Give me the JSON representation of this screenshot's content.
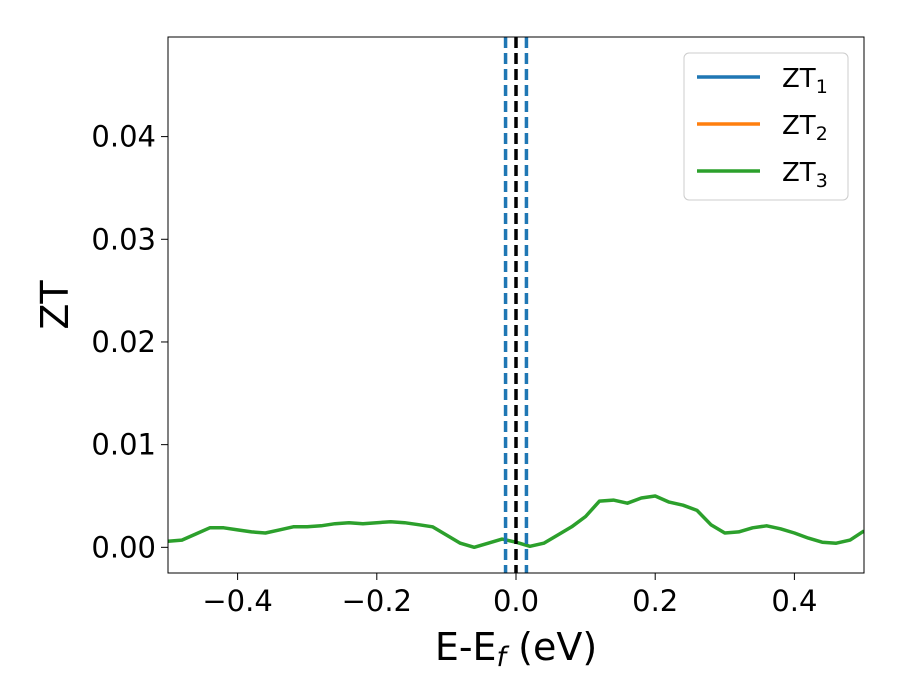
{
  "chart_data": {
    "type": "line",
    "xlabel": "E-E",
    "xlabel_sub": "f",
    "xlabel_unit": " (eV)",
    "ylabel": "ZT",
    "xlim": [
      -0.5,
      0.5
    ],
    "ylim": [
      -0.0025,
      0.0497
    ],
    "grid": false,
    "legend_position": "top-right",
    "x_ticks": [
      -0.4,
      -0.2,
      0.0,
      0.2,
      0.4
    ],
    "x_tick_labels": [
      "−0.4",
      "−0.2",
      "0.0",
      "0.2",
      "0.4"
    ],
    "y_ticks": [
      0.0,
      0.01,
      0.02,
      0.03,
      0.04
    ],
    "y_tick_labels": [
      "0.00",
      "0.01",
      "0.02",
      "0.03",
      "0.04"
    ],
    "series": [
      {
        "name": "ZT",
        "subscript": "1",
        "color": "#1f77b4",
        "x": [],
        "y": []
      },
      {
        "name": "ZT",
        "subscript": "2",
        "color": "#ff7f0e",
        "x": [],
        "y": []
      },
      {
        "name": "ZT",
        "subscript": "3",
        "color": "#2ca02c",
        "x": [
          -0.5,
          -0.48,
          -0.46,
          -0.44,
          -0.42,
          -0.4,
          -0.38,
          -0.36,
          -0.34,
          -0.32,
          -0.3,
          -0.28,
          -0.26,
          -0.24,
          -0.22,
          -0.2,
          -0.18,
          -0.16,
          -0.14,
          -0.12,
          -0.1,
          -0.08,
          -0.06,
          -0.04,
          -0.02,
          0.0,
          0.02,
          0.04,
          0.06,
          0.08,
          0.1,
          0.12,
          0.14,
          0.16,
          0.18,
          0.2,
          0.22,
          0.24,
          0.26,
          0.28,
          0.3,
          0.32,
          0.34,
          0.36,
          0.38,
          0.4,
          0.42,
          0.44,
          0.46,
          0.48,
          0.5
        ],
        "y": [
          0.0006,
          0.0007,
          0.0013,
          0.0019,
          0.0019,
          0.0017,
          0.0015,
          0.0014,
          0.0017,
          0.002,
          0.002,
          0.0021,
          0.0023,
          0.0024,
          0.0023,
          0.0024,
          0.0025,
          0.0024,
          0.0022,
          0.002,
          0.0012,
          0.0004,
          0.0,
          0.0004,
          0.0008,
          0.0005,
          0.0001,
          0.0004,
          0.0012,
          0.002,
          0.003,
          0.0045,
          0.0046,
          0.0043,
          0.0048,
          0.005,
          0.0044,
          0.0041,
          0.0036,
          0.0022,
          0.0014,
          0.0015,
          0.0019,
          0.0021,
          0.0018,
          0.0014,
          0.0009,
          0.0005,
          0.0004,
          0.0007,
          0.0016
        ]
      }
    ],
    "vertical_lines": [
      {
        "x": 0.0,
        "color": "#000000",
        "style": "dashed"
      },
      {
        "x": -0.015,
        "color": "#1f77b4",
        "style": "dashed"
      },
      {
        "x": 0.015,
        "color": "#1f77b4",
        "style": "dashed"
      }
    ]
  }
}
